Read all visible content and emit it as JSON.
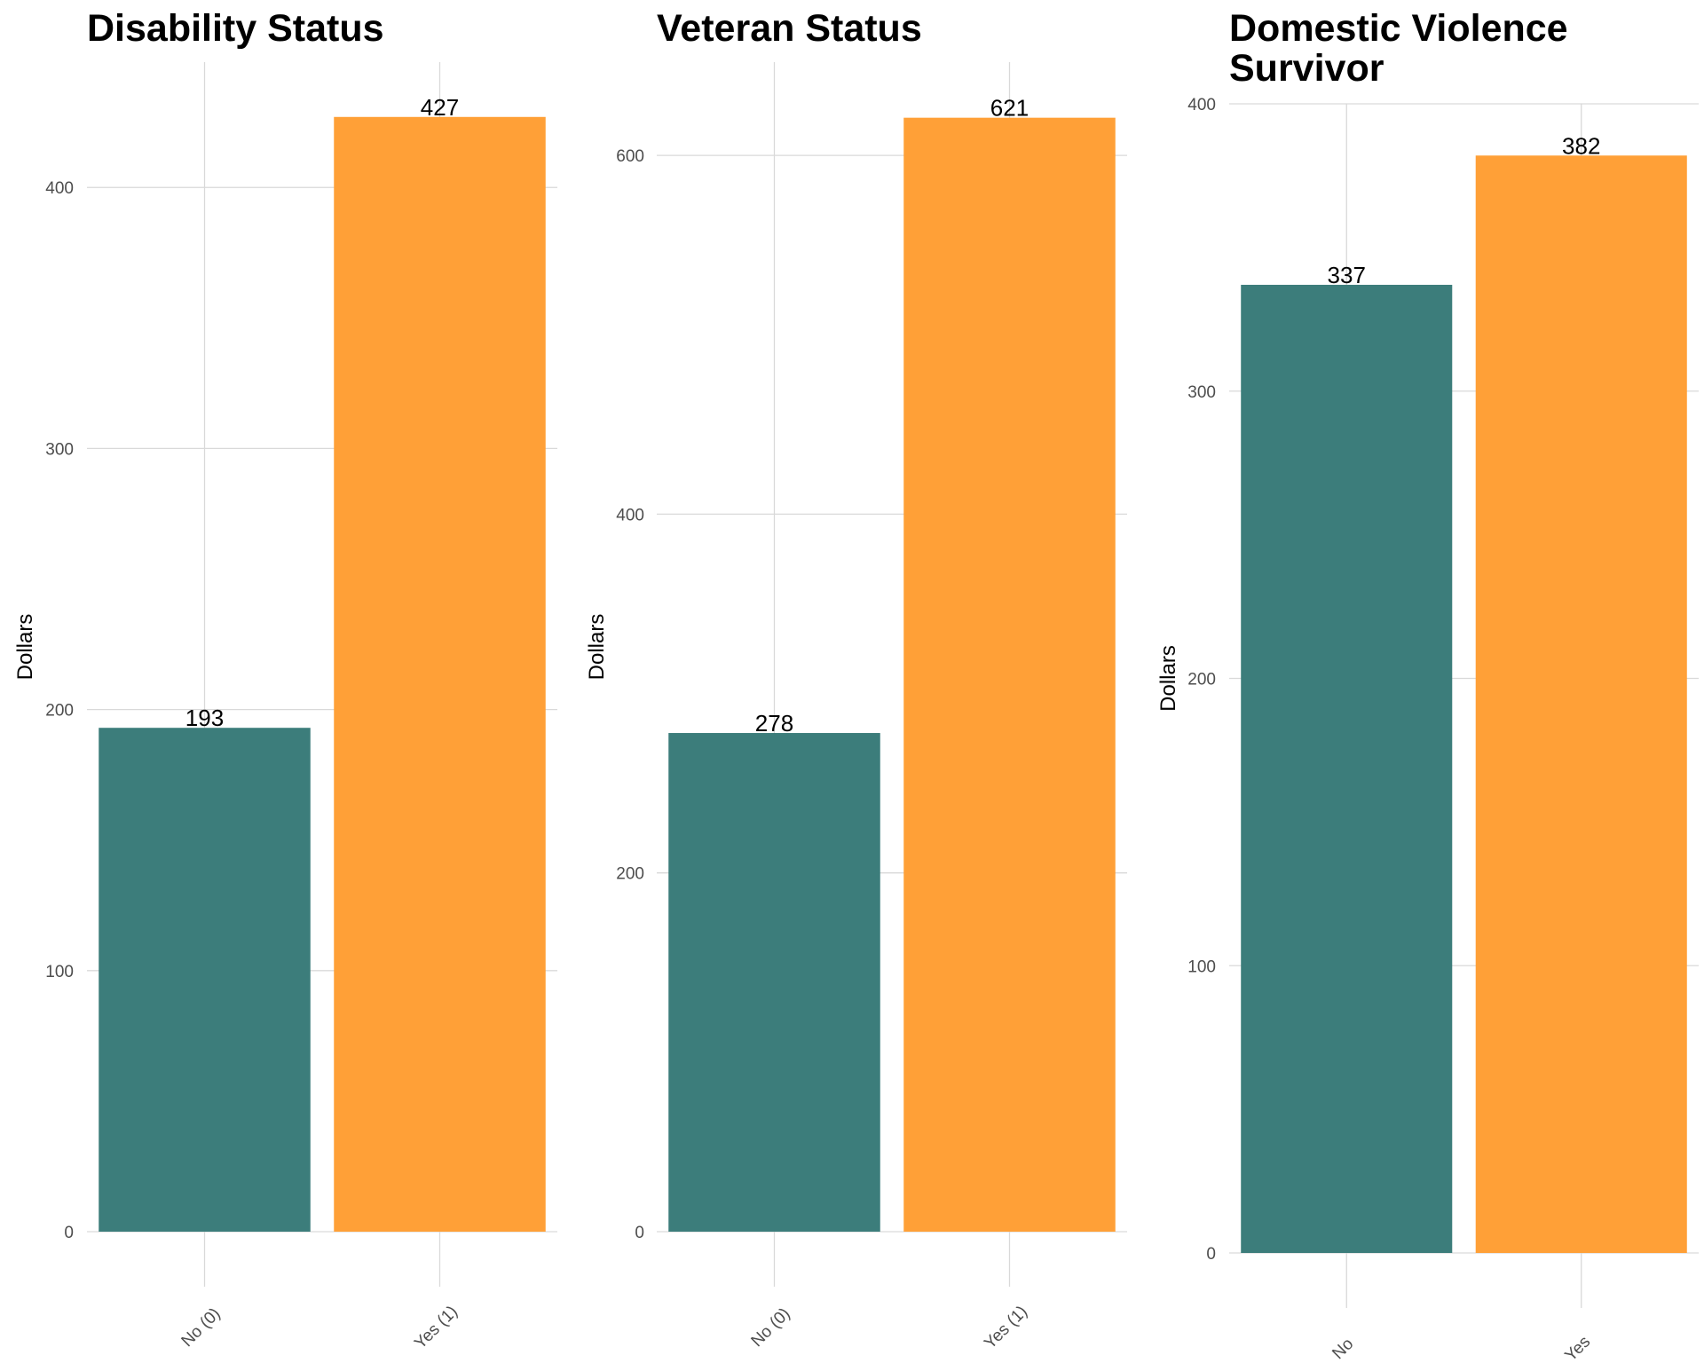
{
  "colors": {
    "no": "#3c7d7b",
    "yes": "#ffa037",
    "grid": "#d9d9d9"
  },
  "chart_data": [
    {
      "type": "bar",
      "title": "Disability Status",
      "ylabel": "Dollars",
      "categories": [
        "No (0)",
        "Yes (1)"
      ],
      "values": [
        193,
        427
      ],
      "ylim": [
        0,
        448
      ],
      "yticks": [
        0,
        100,
        200,
        300,
        400
      ],
      "grid": true
    },
    {
      "type": "bar",
      "title": "Veteran Status",
      "ylabel": "Dollars",
      "categories": [
        "No (0)",
        "Yes (1)"
      ],
      "values": [
        278,
        621
      ],
      "ylim": [
        0,
        652
      ],
      "yticks": [
        0,
        200,
        400,
        600
      ],
      "grid": true
    },
    {
      "type": "bar",
      "title": "Domestic Violence Survivor",
      "title_lines": [
        "Domestic Violence",
        "Survivor"
      ],
      "ylabel": "Dollars",
      "categories": [
        "No",
        "Yes"
      ],
      "values": [
        337,
        382
      ],
      "ylim": [
        0,
        400
      ],
      "yticks": [
        0,
        100,
        200,
        300,
        400
      ],
      "grid": true
    }
  ]
}
